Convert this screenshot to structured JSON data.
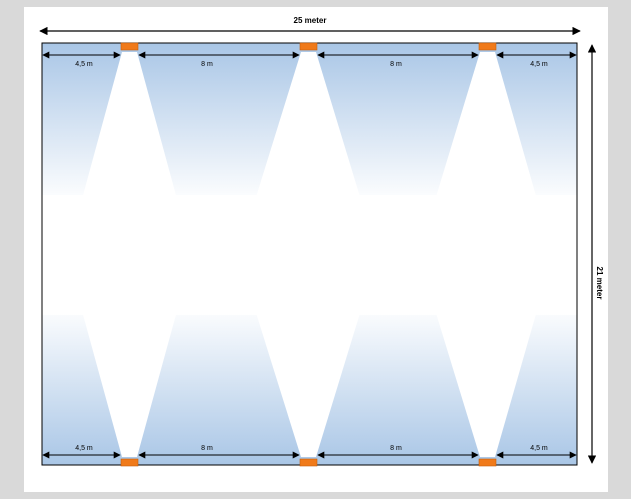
{
  "overall": {
    "width_label": "25 meter",
    "height_label": "21 meter"
  },
  "top_spacing": [
    "4,5 m",
    "8 m",
    "8 m",
    "4,5 m"
  ],
  "bottom_spacing": [
    "4,5 m",
    "8 m",
    "8 m",
    "4,5 m"
  ],
  "colors": {
    "page_background": "#d9d9d9",
    "panel_background": "#ffffff",
    "room_fill_blue": "#a9c6e6",
    "light_fixture": "#f07a1a",
    "outline": "#000000"
  },
  "icons": {
    "fixture": "light-fixture-icon",
    "arrow": "double-headed-arrow-icon"
  }
}
